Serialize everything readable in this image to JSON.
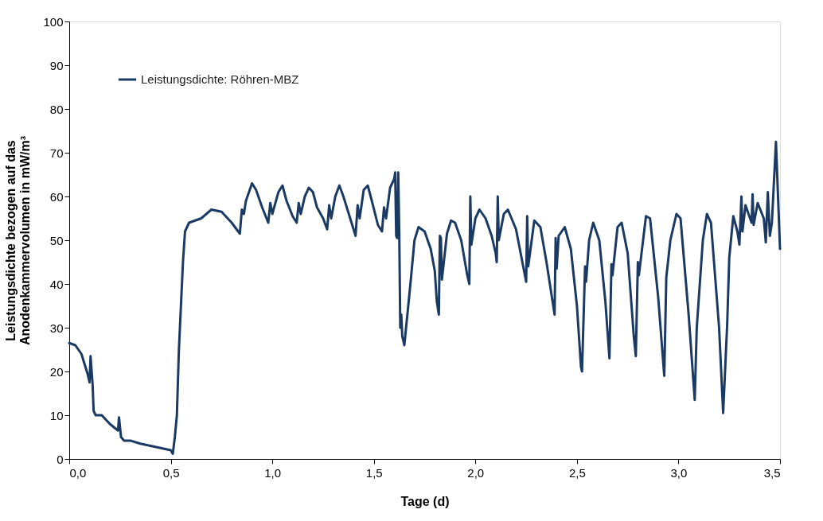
{
  "chart_data": {
    "type": "line",
    "xlabel": "Tage (d)",
    "ylabel": "Leistungsdichte bezogen auf das\nAnodenkammervolumen in mW/m³",
    "xlim": [
      0,
      3.5
    ],
    "xticks": [
      {
        "value": 0,
        "label": "0,0"
      },
      {
        "value": 0.5,
        "label": "0,5"
      },
      {
        "value": 1,
        "label": "1,0"
      },
      {
        "value": 1.5,
        "label": "1,5"
      },
      {
        "value": 2,
        "label": "2,0"
      },
      {
        "value": 2.5,
        "label": "2,5"
      },
      {
        "value": 3,
        "label": "3,0"
      },
      {
        "value": 3.5,
        "label": "3,5"
      }
    ],
    "ylim": [
      0,
      100
    ],
    "yticks": [
      0,
      10,
      20,
      30,
      40,
      50,
      60,
      70,
      80,
      90,
      100
    ],
    "grid": false,
    "legend": "top left",
    "marker": "none",
    "line_style": "solid",
    "x": [
      0.0,
      0.03,
      0.06,
      0.09,
      0.1,
      0.105,
      0.115,
      0.12,
      0.13,
      0.16,
      0.2,
      0.24,
      0.245,
      0.255,
      0.27,
      0.3,
      0.35,
      0.4,
      0.45,
      0.5,
      0.51,
      0.52,
      0.53,
      0.54,
      0.55,
      0.56,
      0.57,
      0.59,
      0.62,
      0.65,
      0.7,
      0.75,
      0.8,
      0.84,
      0.85,
      0.86,
      0.87,
      0.9,
      0.92,
      0.95,
      0.98,
      0.99,
      1.0,
      1.03,
      1.05,
      1.07,
      1.1,
      1.12,
      1.13,
      1.14,
      1.16,
      1.18,
      1.2,
      1.22,
      1.25,
      1.27,
      1.28,
      1.29,
      1.31,
      1.33,
      1.35,
      1.38,
      1.41,
      1.42,
      1.43,
      1.45,
      1.47,
      1.49,
      1.52,
      1.54,
      1.55,
      1.56,
      1.58,
      1.6,
      1.605,
      1.61,
      1.615,
      1.62,
      1.625,
      1.63,
      1.635,
      1.64,
      1.65,
      1.68,
      1.7,
      1.72,
      1.75,
      1.78,
      1.8,
      1.81,
      1.82,
      1.825,
      1.83,
      1.835,
      1.86,
      1.88,
      1.9,
      1.93,
      1.96,
      1.97,
      1.975,
      1.98,
      2.0,
      2.02,
      2.05,
      2.08,
      2.1,
      2.105,
      2.11,
      2.115,
      2.14,
      2.16,
      2.2,
      2.25,
      2.255,
      2.26,
      2.29,
      2.32,
      2.35,
      2.38,
      2.39,
      2.395,
      2.4,
      2.41,
      2.44,
      2.47,
      2.5,
      2.52,
      2.525,
      2.54,
      2.545,
      2.56,
      2.58,
      2.61,
      2.64,
      2.66,
      2.67,
      2.675,
      2.7,
      2.72,
      2.75,
      2.78,
      2.79,
      2.8,
      2.805,
      2.84,
      2.86,
      2.9,
      2.93,
      2.94,
      2.96,
      2.99,
      3.01,
      3.05,
      3.08,
      3.09,
      3.12,
      3.14,
      3.16,
      3.2,
      3.22,
      3.24,
      3.25,
      3.27,
      3.29,
      3.3,
      3.31,
      3.315,
      3.33,
      3.36,
      3.365,
      3.37,
      3.39,
      3.42,
      3.43,
      3.44,
      3.45,
      3.46,
      3.48,
      3.5
    ],
    "series": [
      {
        "name": "Leistungsdichte: Röhren-MBZ",
        "color": "#1b3a63",
        "values": [
          26.5,
          26,
          24,
          19.5,
          17.5,
          23.5,
          17,
          11,
          10,
          10,
          8,
          6.5,
          9.5,
          5,
          4.2,
          4.2,
          3.5,
          3,
          2.5,
          2,
          1.2,
          5,
          10,
          25,
          35,
          45,
          52,
          54,
          54.5,
          55,
          57,
          56.5,
          54,
          51.5,
          57,
          56,
          59,
          63,
          61.5,
          57.5,
          54,
          58.5,
          56,
          61,
          62.5,
          59,
          55.5,
          54,
          58.5,
          56,
          60,
          62,
          61,
          57.5,
          55,
          52.5,
          58,
          55,
          60,
          62.5,
          60,
          55.5,
          51,
          58,
          55,
          61.5,
          62.5,
          59,
          53.5,
          52,
          57.5,
          55,
          62,
          64,
          65.5,
          51,
          50.5,
          65.5,
          52,
          30,
          33,
          28,
          26,
          40,
          50,
          53,
          52,
          48,
          43,
          36,
          33,
          51,
          50.5,
          41,
          51.5,
          54.5,
          54,
          50,
          42,
          40,
          60,
          49,
          55,
          57,
          55,
          51,
          47,
          45,
          60,
          50,
          56,
          57,
          52.5,
          40.5,
          55.5,
          44,
          54.5,
          53,
          45,
          36,
          33,
          50.5,
          43.5,
          51,
          53,
          48,
          35,
          21,
          20,
          44,
          40.5,
          50,
          54,
          50,
          36,
          23,
          44.5,
          42,
          53,
          54,
          47,
          28,
          23.5,
          45,
          42,
          55.5,
          55,
          37,
          19,
          41.5,
          50,
          56,
          55,
          33,
          13.5,
          30,
          50,
          56,
          54,
          30,
          10.5,
          31,
          46,
          55.5,
          52,
          49,
          60,
          52,
          58,
          54,
          60.5,
          53.5,
          58.5,
          55,
          49.5,
          61,
          51,
          54,
          72.5,
          48
        ]
      }
    ]
  }
}
